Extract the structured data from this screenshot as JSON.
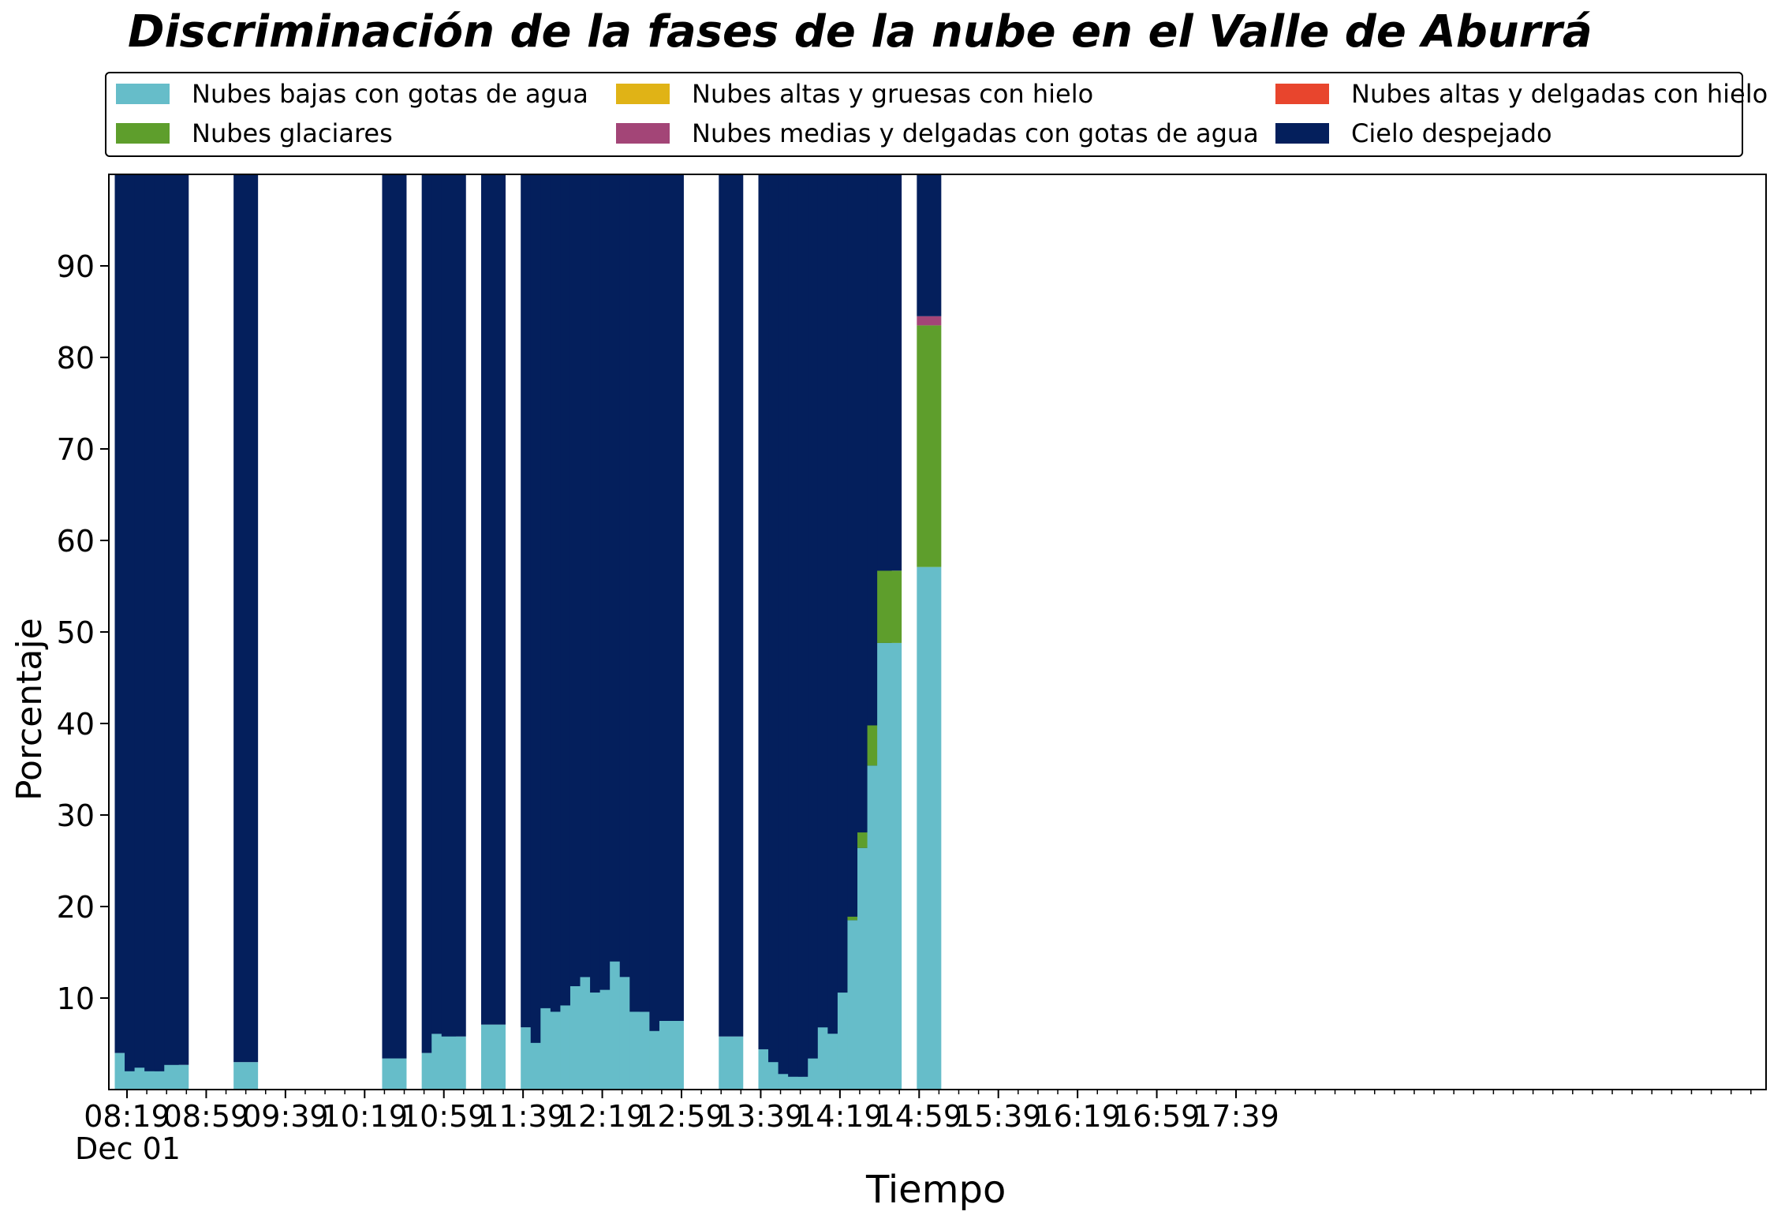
{
  "chart_data": {
    "type": "bar",
    "stacked": true,
    "title": "Discriminación de la fases de la nube en el Valle de Aburrá",
    "xlabel": "Tiempo",
    "ylabel": "Porcentaje",
    "date_label": "Dec 01",
    "ylim": [
      0,
      100
    ],
    "yticks": [
      10,
      20,
      30,
      40,
      50,
      60,
      70,
      80,
      90
    ],
    "xticklabels": [
      "08:19",
      "08:59",
      "09:39",
      "10:19",
      "10:59",
      "11:39",
      "12:19",
      "12:59",
      "13:39",
      "14:19",
      "14:59",
      "15:39",
      "16:19",
      "16:59",
      "17:39"
    ],
    "legend_position": "top",
    "series": [
      {
        "name": "Nubes bajas con gotas de agua",
        "color": "#66bdc9"
      },
      {
        "name": "Nubes altas y gruesas con hielo",
        "color": "#e0b316"
      },
      {
        "name": "Nubes altas y delgadas con hielo",
        "color": "#e8452d"
      },
      {
        "name": "Nubes glaciares",
        "color": "#5e9e2c"
      },
      {
        "name": "Nubes medias y delgadas con gotas de agua",
        "color": "#a34577"
      },
      {
        "name": "Cielo despejado",
        "color": "#041f5c"
      }
    ],
    "bars": [
      {
        "time": "08:19",
        "low": 4.0
      },
      {
        "time": "08:24",
        "low": 2.0
      },
      {
        "time": "08:29",
        "low": 2.4
      },
      {
        "time": "08:34",
        "low": 2.0
      },
      {
        "time": "08:39",
        "low": 2.0
      },
      {
        "time": "08:44",
        "low": 2.7
      },
      {
        "time": "09:19",
        "low": 3.0
      },
      {
        "time": "10:34",
        "low": 3.4
      },
      {
        "time": "10:54",
        "low": 4.0
      },
      {
        "time": "10:59",
        "low": 6.1
      },
      {
        "time": "11:04",
        "low": 5.8
      },
      {
        "time": "11:24",
        "low": 7.1
      },
      {
        "time": "11:44",
        "low": 6.8
      },
      {
        "time": "11:49",
        "low": 5.1
      },
      {
        "time": "11:54",
        "low": 8.9
      },
      {
        "time": "11:59",
        "low": 8.5
      },
      {
        "time": "12:04",
        "low": 9.2
      },
      {
        "time": "12:09",
        "low": 11.3
      },
      {
        "time": "12:14",
        "low": 12.3
      },
      {
        "time": "12:19",
        "low": 10.6
      },
      {
        "time": "12:24",
        "low": 10.9
      },
      {
        "time": "12:29",
        "low": 14.0
      },
      {
        "time": "12:34",
        "low": 12.3
      },
      {
        "time": "12:39",
        "low": 8.5
      },
      {
        "time": "12:44",
        "low": 8.5
      },
      {
        "time": "12:49",
        "low": 6.4
      },
      {
        "time": "12:54",
        "low": 7.5
      },
      {
        "time": "13:24",
        "low": 5.8
      },
      {
        "time": "13:44",
        "low": 4.4
      },
      {
        "time": "13:49",
        "low": 3.0
      },
      {
        "time": "13:54",
        "low": 1.7
      },
      {
        "time": "13:59",
        "low": 1.4
      },
      {
        "time": "14:04",
        "low": 1.4
      },
      {
        "time": "14:09",
        "low": 3.4
      },
      {
        "time": "14:14",
        "low": 6.8
      },
      {
        "time": "14:19",
        "low": 6.1
      },
      {
        "time": "14:24",
        "low": 10.6
      },
      {
        "time": "14:29",
        "low": 18.5,
        "glacier": 0.4
      },
      {
        "time": "14:34",
        "low": 26.4,
        "glacier": 1.7
      },
      {
        "time": "14:39",
        "low": 35.4,
        "glacier": 4.4
      },
      {
        "time": "14:44",
        "low": 48.8,
        "glacier": 7.9
      },
      {
        "time": "15:04",
        "low": 57.1,
        "glacier": 26.4,
        "medium": 1.0
      }
    ]
  }
}
